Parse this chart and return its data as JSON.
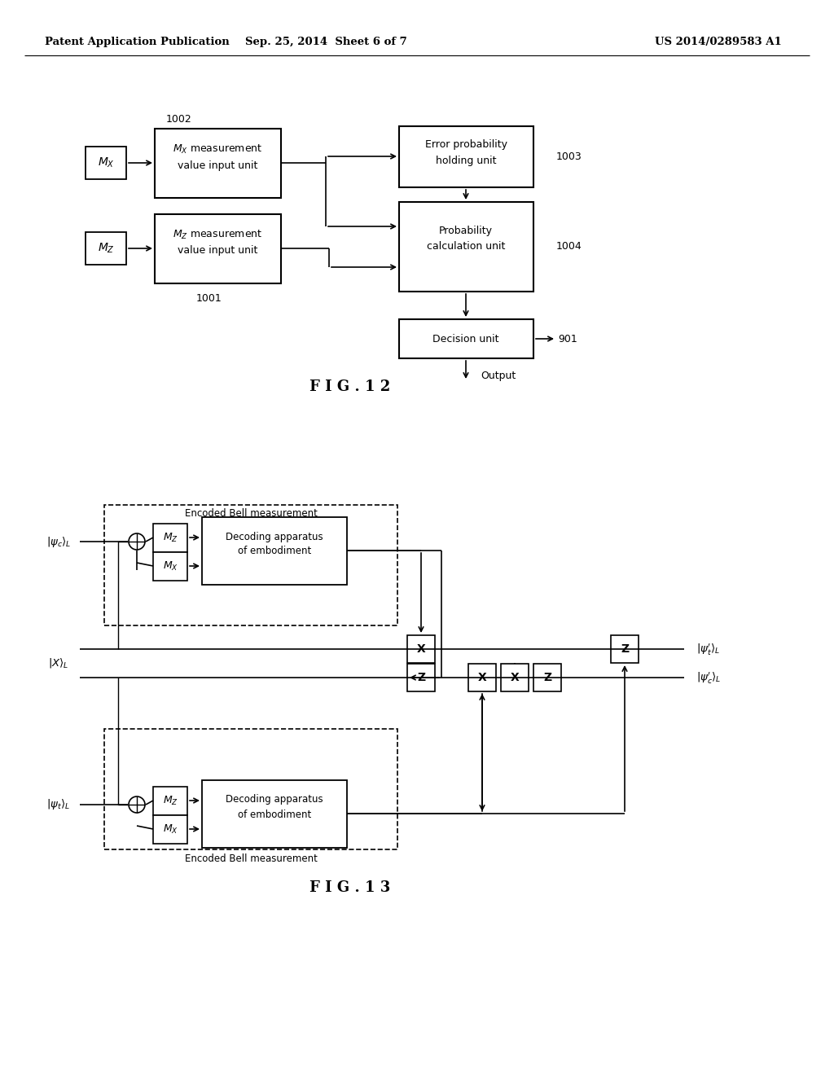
{
  "bg_color": "#ffffff",
  "header_left": "Patent Application Publication",
  "header_mid": "Sep. 25, 2014  Sheet 6 of 7",
  "header_right": "US 2014/0289583 A1",
  "fig12_title": "F I G . 1 2",
  "fig13_title": "F I G . 1 3",
  "line_color": "#000000",
  "text_color": "#000000"
}
